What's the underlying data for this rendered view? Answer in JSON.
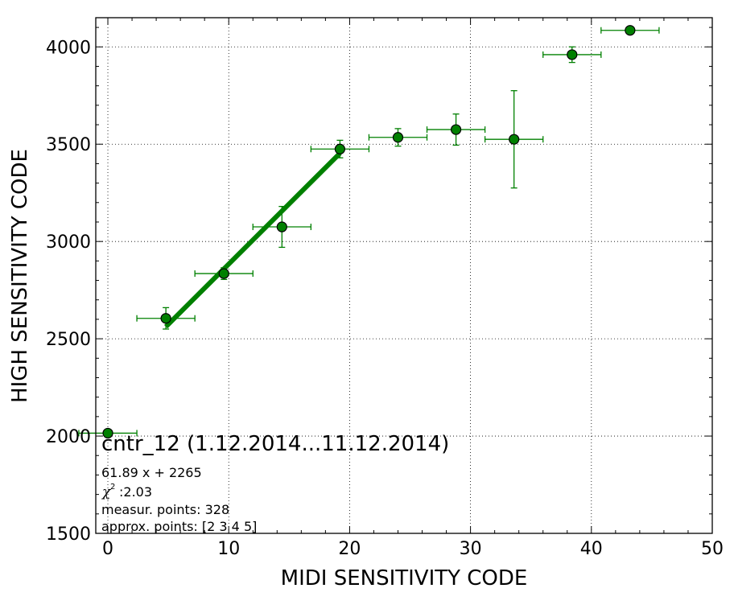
{
  "chart_data": {
    "type": "scatter",
    "xlabel": "MIDI SENSITIVITY CODE",
    "ylabel": "HIGH SENSITIVITY CODE",
    "xlim": [
      -1,
      50
    ],
    "ylim": [
      1500,
      4150
    ],
    "x_ticks": [
      "0",
      "10",
      "20",
      "30",
      "40",
      "50"
    ],
    "y_ticks": [
      "1500",
      "2000",
      "2500",
      "3000",
      "3500",
      "4000"
    ],
    "grid": true,
    "marker_color": "#008000",
    "fit_color": "#008000",
    "points": [
      {
        "x": 0.0,
        "y": 2015,
        "xerr": 2.4,
        "yerr": 10
      },
      {
        "x": 4.8,
        "y": 2605,
        "xerr": 2.4,
        "yerr": 55
      },
      {
        "x": 9.6,
        "y": 2835,
        "xerr": 2.4,
        "yerr": 30
      },
      {
        "x": 14.4,
        "y": 3075,
        "xerr": 2.4,
        "yerr": 105
      },
      {
        "x": 19.2,
        "y": 3475,
        "xerr": 2.4,
        "yerr": 45
      },
      {
        "x": 24.0,
        "y": 3535,
        "xerr": 2.4,
        "yerr": 45
      },
      {
        "x": 28.8,
        "y": 3575,
        "xerr": 2.4,
        "yerr": 80
      },
      {
        "x": 33.6,
        "y": 3525,
        "xerr": 2.4,
        "yerr": 250
      },
      {
        "x": 38.4,
        "y": 3960,
        "xerr": 2.4,
        "yerr": 40
      },
      {
        "x": 43.2,
        "y": 4085,
        "xerr": 2.4,
        "yerr": 5
      }
    ],
    "fit": {
      "slope": 61.89,
      "intercept": 2265,
      "x_range": [
        4.8,
        19.2
      ]
    },
    "title": "cntr_12 (1.12.2014...11.12.2014)",
    "annotations": {
      "equation": "61.89 x + 2265",
      "chi2_value": ":2.03",
      "measur_points": "measur. points: 328",
      "approx_points": "approx. points: [2 3 4 5]"
    }
  }
}
